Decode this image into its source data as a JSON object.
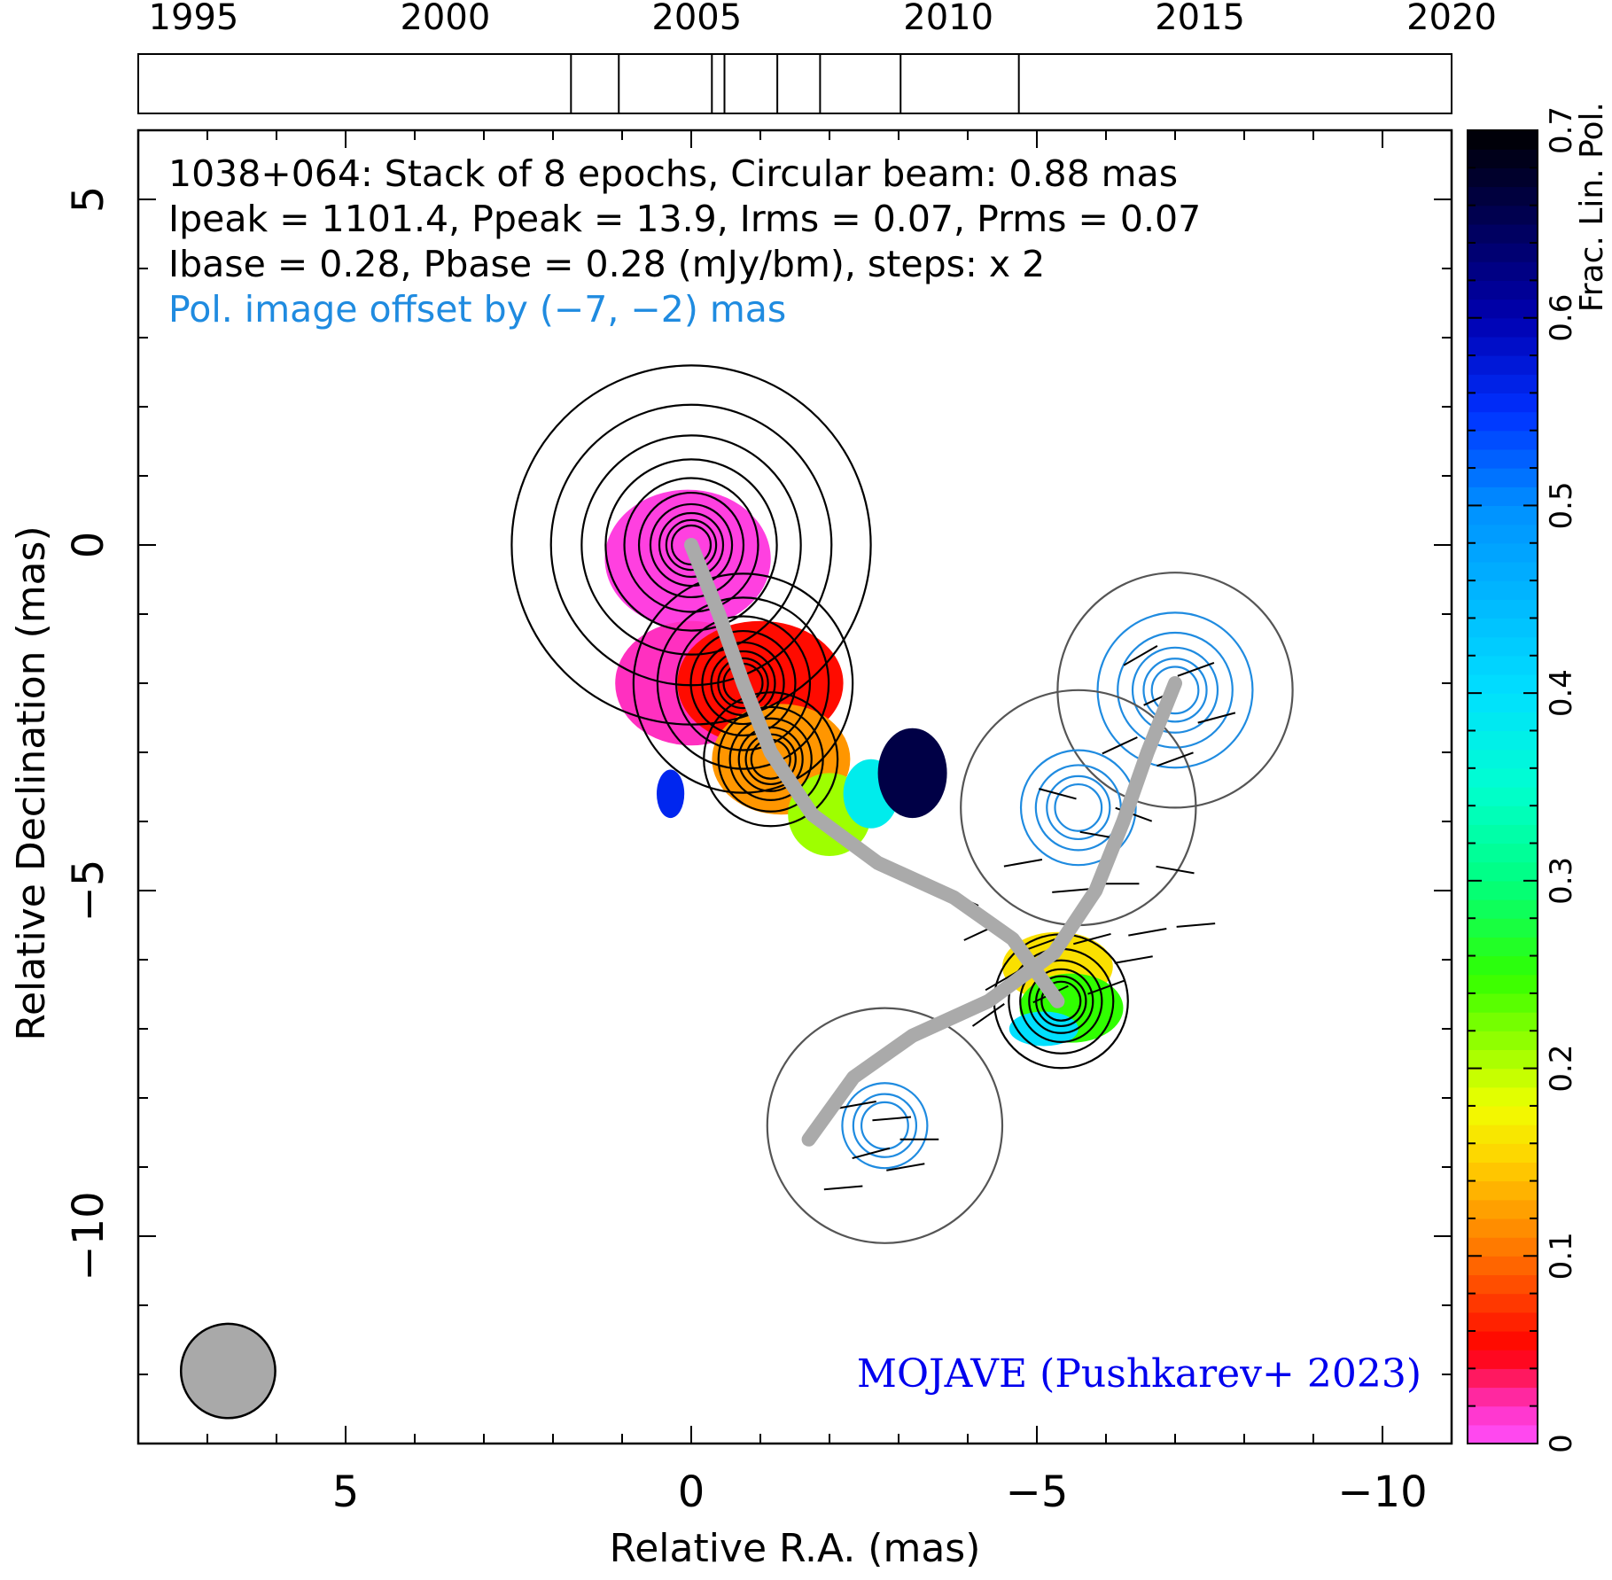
{
  "chart_data": {
    "type": "image",
    "source": "1038+064",
    "info_lines": [
      "1038+064: Stack of 8 epochs, Circular beam: 0.88 mas",
      "Ipeak = 1101.4, Ppeak = 13.9, Irms = 0.07, Prms = 0.07",
      "Ibase = 0.28, Pbase = 0.28 (mJy/bm), steps: x 2"
    ],
    "offset_note": "Pol. image offset by (−7, −2) mas",
    "credit": "MOJAVE (Pushkarev+ 2023)",
    "xlabel": "Relative R.A. (mas)",
    "ylabel": "Relative Declination (mas)",
    "colorbar_label": "Frac. Lin. Pol.",
    "xlim": [
      8,
      -11
    ],
    "ylim": [
      -13,
      6
    ],
    "x_ticks": [
      {
        "v": 5,
        "label": "5"
      },
      {
        "v": 0,
        "label": "0"
      },
      {
        "v": -5,
        "label": "−5"
      },
      {
        "v": -10,
        "label": "−10"
      }
    ],
    "y_ticks": [
      {
        "v": 5,
        "label": "5"
      },
      {
        "v": 0,
        "label": "0"
      },
      {
        "v": -5,
        "label": "−5"
      },
      {
        "v": -10,
        "label": "−10"
      }
    ],
    "colorbar": {
      "range": [
        0,
        0.7
      ],
      "ticks": [
        {
          "v": 0,
          "label": "0"
        },
        {
          "v": 0.1,
          "label": "0.1"
        },
        {
          "v": 0.2,
          "label": "0.2"
        },
        {
          "v": 0.3,
          "label": "0.3"
        },
        {
          "v": 0.4,
          "label": "0.4"
        },
        {
          "v": 0.5,
          "label": "0.5"
        },
        {
          "v": 0.6,
          "label": "0.6"
        },
        {
          "v": 0.7,
          "label": "0.7"
        }
      ]
    },
    "timeline": {
      "range": [
        1993.9,
        2020.0
      ],
      "year_ticks": [
        {
          "v": 1995,
          "label": "1995"
        },
        {
          "v": 2000,
          "label": "2000"
        },
        {
          "v": 2005,
          "label": "2005"
        },
        {
          "v": 2010,
          "label": "2010"
        },
        {
          "v": 2015,
          "label": "2015"
        },
        {
          "v": 2020,
          "label": "2020"
        }
      ],
      "epochs": [
        2002.5,
        2003.45,
        2005.3,
        2005.55,
        2006.6,
        2007.45,
        2009.05,
        2011.4
      ]
    },
    "beam": {
      "ra": 6.7,
      "dec": -11.95,
      "diameter_mas": 0.88
    },
    "ridge_line": [
      [
        0,
        0
      ],
      [
        -0.4,
        -1.0
      ],
      [
        -0.75,
        -2.0
      ],
      [
        -1.15,
        -3.0
      ],
      [
        -1.75,
        -3.9
      ],
      [
        -2.7,
        -4.6
      ],
      [
        -3.8,
        -5.1
      ],
      [
        -4.65,
        -5.7
      ],
      [
        -5.3,
        -6.6
      ]
    ],
    "ridge_line_pol": [
      [
        -7,
        -2
      ],
      [
        -6.6,
        -3.0
      ],
      [
        -6.25,
        -4.0
      ],
      [
        -5.85,
        -5.0
      ],
      [
        -5.25,
        -5.9
      ],
      [
        -4.3,
        -6.6
      ],
      [
        -3.2,
        -7.1
      ],
      [
        -2.35,
        -7.7
      ],
      [
        -1.7,
        -8.6
      ]
    ],
    "stokes_I_contours": {
      "components": [
        {
          "ra": 0,
          "dec": 0,
          "levels": 10
        },
        {
          "ra": -0.75,
          "dec": -2.0,
          "levels": 8
        },
        {
          "ra": -1.15,
          "dec": -3.1,
          "levels": 6
        },
        {
          "ra": -5.35,
          "dec": -6.6,
          "levels": 6
        }
      ]
    },
    "pol_contours": {
      "components": [
        {
          "ra": -7,
          "dec": -2.1,
          "levels": 5
        },
        {
          "ra": -5.6,
          "dec": -3.8,
          "levels": 4
        },
        {
          "ra": -2.8,
          "dec": -8.4,
          "levels": 3
        }
      ]
    },
    "frac_pol_regions": [
      {
        "ra": 0.05,
        "dec": -0.2,
        "rx": 1.2,
        "ry": 1.0,
        "value": 0.01
      },
      {
        "ra": 0.0,
        "dec": -2.0,
        "rx": 1.1,
        "ry": 0.9,
        "value": 0.02
      },
      {
        "ra": -1.0,
        "dec": -2.0,
        "rx": 1.2,
        "ry": 0.9,
        "value": 0.055
      },
      {
        "ra": -1.3,
        "dec": -3.1,
        "rx": 1.0,
        "ry": 0.8,
        "value": 0.12
      },
      {
        "ra": -2.0,
        "dec": -3.9,
        "rx": 0.6,
        "ry": 0.6,
        "value": 0.21
      },
      {
        "ra": -2.6,
        "dec": -3.6,
        "rx": 0.4,
        "ry": 0.5,
        "value": 0.38
      },
      {
        "ra": -3.2,
        "dec": -3.3,
        "rx": 0.5,
        "ry": 0.65,
        "value": 0.66
      },
      {
        "ra": -5.3,
        "dec": -6.1,
        "rx": 0.8,
        "ry": 0.5,
        "value": 0.16
      },
      {
        "ra": -5.5,
        "dec": -6.7,
        "rx": 0.75,
        "ry": 0.5,
        "value": 0.25
      },
      {
        "ra": -5.1,
        "dec": -7.0,
        "rx": 0.5,
        "ry": 0.25,
        "value": 0.4
      },
      {
        "ra": 0.3,
        "dec": -3.6,
        "rx": 0.2,
        "ry": 0.35,
        "value": 0.56
      }
    ],
    "evpa_vectors": [
      {
        "ra": -7.3,
        "dec": -1.8,
        "angle": 20
      },
      {
        "ra": -6.8,
        "dec": -2.2,
        "angle": 25
      },
      {
        "ra": -6.5,
        "dec": -1.6,
        "angle": 30
      },
      {
        "ra": -7.6,
        "dec": -2.5,
        "angle": 15
      },
      {
        "ra": -6.2,
        "dec": -2.9,
        "angle": 25
      },
      {
        "ra": -7.0,
        "dec": -3.1,
        "angle": 20
      },
      {
        "ra": -5.3,
        "dec": -3.6,
        "angle": -15
      },
      {
        "ra": -5.9,
        "dec": -4.2,
        "angle": -10
      },
      {
        "ra": -6.4,
        "dec": -3.9,
        "angle": -20
      },
      {
        "ra": -4.8,
        "dec": -4.6,
        "angle": 10
      },
      {
        "ra": -5.5,
        "dec": -5.0,
        "angle": 5
      },
      {
        "ra": -6.2,
        "dec": -4.9,
        "angle": 0
      },
      {
        "ra": -7.0,
        "dec": -4.7,
        "angle": -10
      },
      {
        "ra": -4.2,
        "dec": -5.6,
        "angle": 25
      },
      {
        "ra": -5.0,
        "dec": -5.8,
        "angle": 20
      },
      {
        "ra": -5.8,
        "dec": -5.7,
        "angle": 15
      },
      {
        "ra": -6.6,
        "dec": -5.6,
        "angle": 10
      },
      {
        "ra": -7.3,
        "dec": -5.5,
        "angle": 5
      },
      {
        "ra": -4.5,
        "dec": -6.3,
        "angle": 30
      },
      {
        "ra": -5.2,
        "dec": -6.5,
        "angle": 25
      },
      {
        "ra": -6.0,
        "dec": -6.4,
        "angle": 20
      },
      {
        "ra": -3.9,
        "dec": -5.1,
        "angle": -25
      },
      {
        "ra": -4.3,
        "dec": -6.8,
        "angle": 35
      },
      {
        "ra": -6.4,
        "dec": -6.0,
        "angle": 10
      },
      {
        "ra": -2.4,
        "dec": -8.1,
        "angle": 10
      },
      {
        "ra": -2.9,
        "dec": -8.3,
        "angle": 5
      },
      {
        "ra": -3.3,
        "dec": -8.6,
        "angle": 0
      },
      {
        "ra": -2.6,
        "dec": -8.8,
        "angle": 15
      },
      {
        "ra": -3.1,
        "dec": -9.0,
        "angle": 10
      },
      {
        "ra": -2.2,
        "dec": -9.3,
        "angle": 5
      }
    ]
  }
}
